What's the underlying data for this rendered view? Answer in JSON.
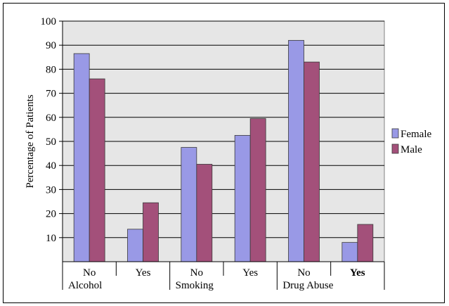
{
  "chart_data": {
    "type": "bar",
    "categories": [
      "No",
      "Yes",
      "No",
      "Yes",
      "No",
      "Yes"
    ],
    "groups": [
      "Alcohol",
      "Smoking",
      "Drug Abuse"
    ],
    "series": [
      {
        "name": "Female",
        "values": [
          86.5,
          13.5,
          47.5,
          52.5,
          92,
          8
        ],
        "color": "#9999e6"
      },
      {
        "name": "Male",
        "values": [
          76,
          24.5,
          40.5,
          59.5,
          83,
          15.5
        ],
        "color": "#a3507a"
      }
    ],
    "ylabel": "Percentage of Patients",
    "xlabel": "",
    "title": "",
    "ylim": [
      0,
      100
    ],
    "yticks": [
      "10",
      "20",
      "30",
      "40",
      "50",
      "60",
      "70",
      "80",
      "90",
      "100"
    ],
    "grid": true,
    "plot_background": "#e6e6e6",
    "legend_position": "right",
    "bold_category_index": 5
  }
}
